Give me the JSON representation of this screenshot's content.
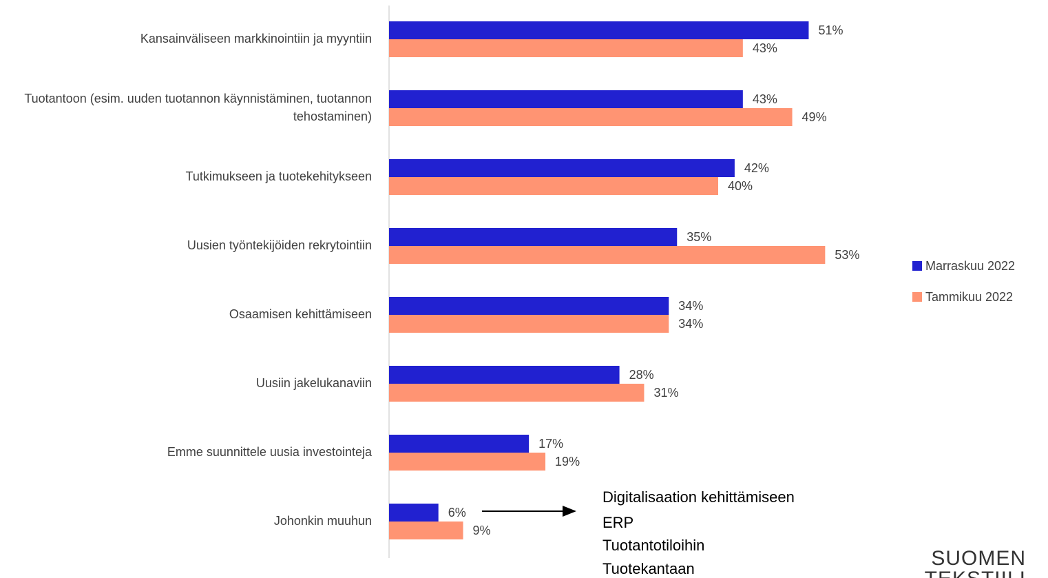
{
  "chart_data": {
    "type": "bar",
    "orientation": "horizontal",
    "categories": [
      "Kansainväliseen markkinointiin ja myyntiin",
      "Tuotantoon (esim. uuden tuotannon käynnistäminen, tuotannon tehostaminen)",
      "Tutkimukseen ja tuotekehitykseen",
      "Uusien työntekijöiden rekrytointiin",
      "Osaamisen kehittämiseen",
      "Uusiin jakelukanaviin",
      "Emme suunnittele uusia investointeja",
      "Johonkin muuhun"
    ],
    "series": [
      {
        "name": "Marraskuu 2022",
        "color": "#2121d0",
        "values": [
          51,
          43,
          42,
          35,
          34,
          28,
          17,
          6
        ],
        "value_labels": [
          "51%",
          "43%",
          "42%",
          "35%",
          "34%",
          "28%",
          "17%",
          "6%"
        ]
      },
      {
        "name": "Tammikuu 2022",
        "color": "#ff9473",
        "values": [
          43,
          49,
          40,
          53,
          34,
          31,
          19,
          9
        ],
        "value_labels": [
          "43%",
          "49%",
          "40%",
          "53%",
          "34%",
          "31%",
          "19%",
          "9%"
        ]
      }
    ],
    "xlim": [
      0,
      80
    ],
    "legend": "right",
    "annotation": [
      "Digitalisaation kehittämiseen",
      "ERP",
      "Tuotantotiloihin",
      "Tuotekantaan"
    ],
    "logo": [
      "SUOMEN",
      "TEKSTIILI"
    ]
  }
}
